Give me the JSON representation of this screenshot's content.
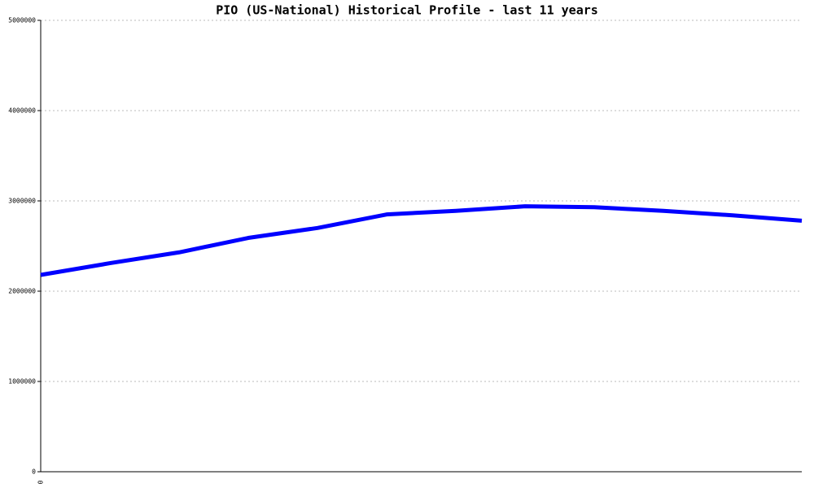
{
  "chart_data": {
    "type": "line",
    "title": "PIO (US-National) Historical Profile - last 11 years",
    "categories": [
      "0",
      null,
      null,
      null,
      null,
      null,
      null,
      null,
      null,
      null,
      null,
      null
    ],
    "values": [
      2180000,
      2310000,
      2430000,
      2590000,
      2700000,
      2850000,
      2890000,
      2940000,
      2930000,
      2890000,
      2840000,
      2780000
    ],
    "color": "#0000ff",
    "ylim": [
      0,
      5000000
    ],
    "yticks": [
      0,
      1000000,
      2000000,
      3000000,
      4000000,
      5000000
    ],
    "grid": true
  }
}
